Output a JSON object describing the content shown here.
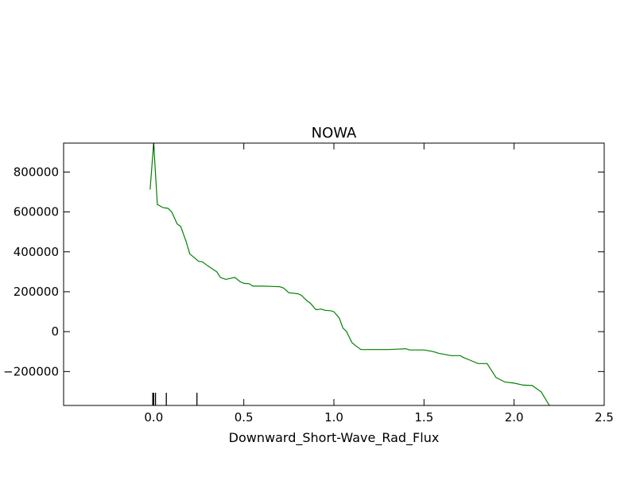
{
  "chart_data": {
    "type": "line",
    "title": "NOWA",
    "xlabel": "Downward_Short-Wave_Rad_Flux",
    "ylabel": "",
    "xlim": [
      -0.5,
      2.5
    ],
    "ylim": [
      -370000,
      945000
    ],
    "grid": false,
    "line_color": "#008000",
    "xticks": [
      0.0,
      0.5,
      1.0,
      1.5,
      2.0,
      2.5
    ],
    "xtick_labels": [
      "0.0",
      "0.5",
      "1.0",
      "1.5",
      "2.0",
      "2.5"
    ],
    "yticks": [
      -200000,
      0,
      200000,
      400000,
      600000,
      800000
    ],
    "ytick_labels": [
      "−200000",
      "0",
      "200000",
      "400000",
      "600000",
      "800000"
    ],
    "rug_x": [
      -0.005,
      0.0,
      0.01,
      0.07,
      0.24
    ],
    "series": [
      {
        "x": [
          -0.02,
          0.0,
          0.02,
          0.05,
          0.08,
          0.1,
          0.13,
          0.15,
          0.18,
          0.2,
          0.25,
          0.27,
          0.3,
          0.33,
          0.35,
          0.37,
          0.4,
          0.45,
          0.48,
          0.5,
          0.53,
          0.55,
          0.6,
          0.65,
          0.7,
          0.72,
          0.75,
          0.8,
          0.82,
          0.85,
          0.87,
          0.9,
          0.93,
          0.95,
          0.98,
          1.0,
          1.03,
          1.05,
          1.07,
          1.1,
          1.12,
          1.15,
          1.2,
          1.3,
          1.35,
          1.4,
          1.42,
          1.5,
          1.55,
          1.58,
          1.65,
          1.7,
          1.72,
          1.76,
          1.8,
          1.85,
          1.9,
          1.95,
          2.0,
          2.05,
          2.1,
          2.15,
          2.2
        ],
        "y": [
          712000,
          945000,
          638000,
          622000,
          618000,
          600000,
          540000,
          527000,
          452000,
          390000,
          352000,
          350000,
          330000,
          312000,
          300000,
          272000,
          262000,
          272000,
          250000,
          242000,
          240000,
          228000,
          228000,
          227000,
          225000,
          219000,
          195000,
          190000,
          182000,
          155000,
          142000,
          110000,
          113000,
          107000,
          105000,
          100000,
          68000,
          18000,
          0,
          -55000,
          -70000,
          -90000,
          -90000,
          -90000,
          -88000,
          -86000,
          -92000,
          -92000,
          -100000,
          -108000,
          -120000,
          -120000,
          -130000,
          -145000,
          -160000,
          -160000,
          -230000,
          -253000,
          -258000,
          -268000,
          -270000,
          -302000,
          -376000
        ]
      }
    ]
  }
}
